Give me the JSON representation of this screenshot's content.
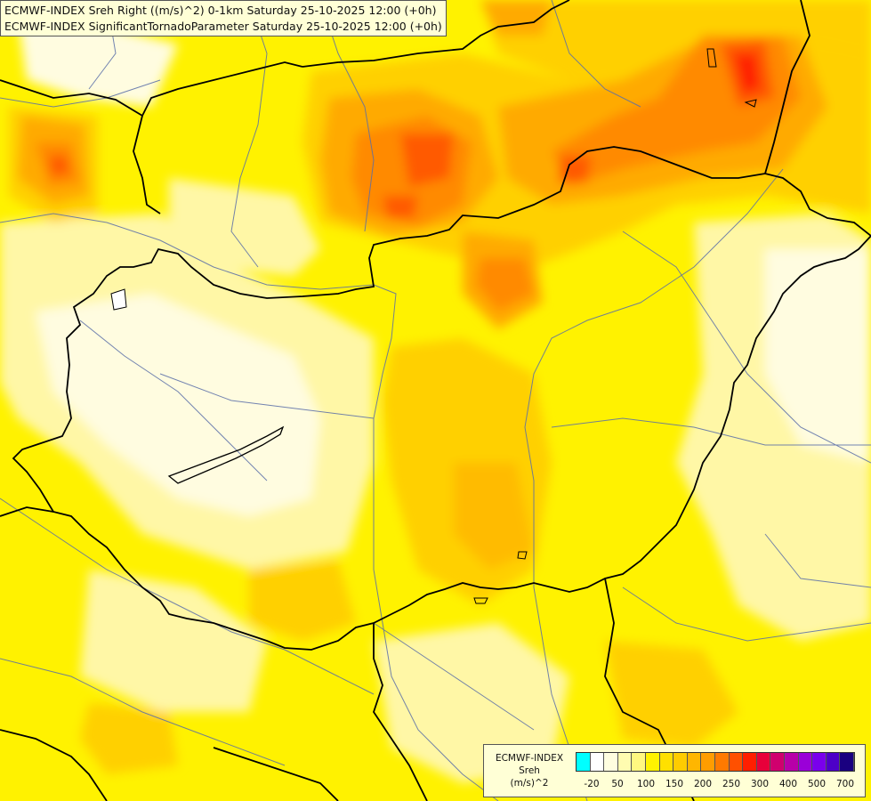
{
  "header": {
    "line1": "ECMWF-INDEX Sreh Right ((m/s)^2) 0-1km Saturday 25-10-2025 12:00 (+0h)",
    "line2": "ECMWF-INDEX SignificantTornadoParameter Saturday 25-10-2025 12:00 (+0h)"
  },
  "legend": {
    "line1": "ECMWF-INDEX",
    "line2": "Sreh",
    "line3": "(m/s)^2",
    "colors": [
      "#00ffff",
      "#ffffff",
      "#fffee0",
      "#fffcb0",
      "#fff880",
      "#fff300",
      "#ffe000",
      "#ffcc00",
      "#ffb600",
      "#ff9d00",
      "#ff7a00",
      "#ff5000",
      "#ff1f00",
      "#e8003a",
      "#d0006e",
      "#b800a8",
      "#9a00d8",
      "#7a00ec",
      "#4d00c8",
      "#1a0080"
    ],
    "ticks": [
      "-20",
      "50",
      "100",
      "150",
      "200",
      "250",
      "300",
      "400",
      "500",
      "700"
    ]
  },
  "map": {
    "colors": {
      "pale": "#fffce0",
      "light": "#fff7a6",
      "yellow": "#fff000",
      "amber": "#ffd000",
      "orange": "#ffb000",
      "dark_orange": "#ff8a00",
      "red_orange": "#ff5a00",
      "red": "#ff2000",
      "border": "#000000",
      "river": "#5a6ea8"
    }
  }
}
